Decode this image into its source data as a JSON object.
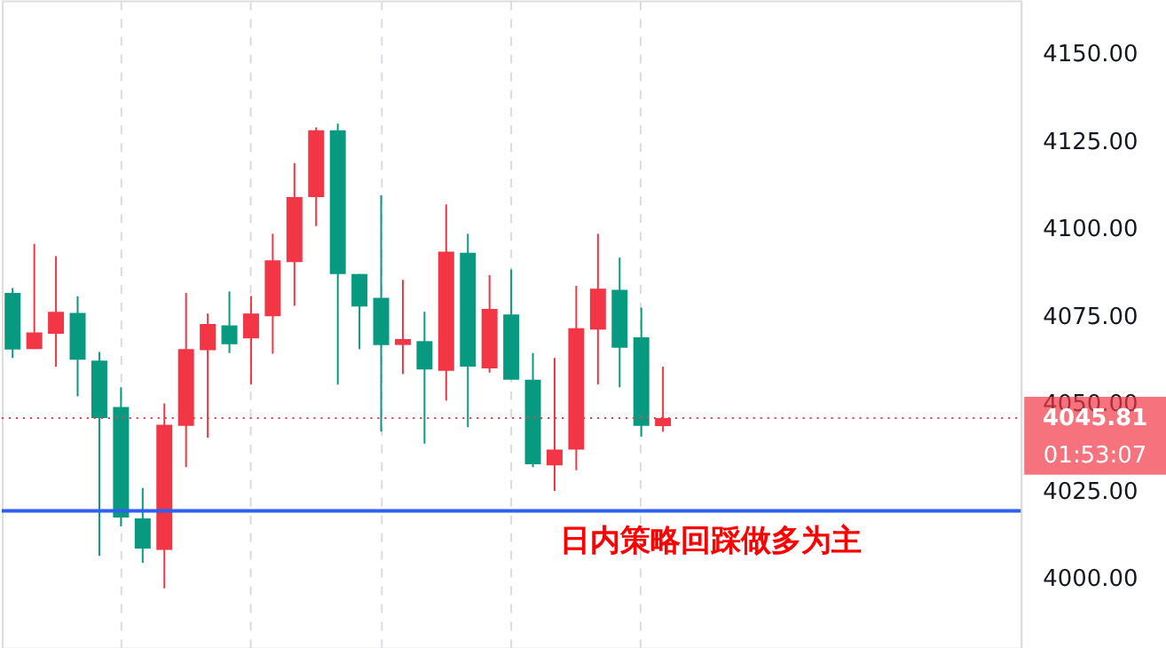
{
  "chart_data": {
    "type": "candlestick",
    "categories": [
      null,
      null,
      null,
      null,
      null,
      null,
      null,
      null,
      null,
      null,
      null,
      null,
      null,
      null,
      null,
      null,
      null,
      null,
      null,
      null,
      null,
      null,
      null,
      null,
      null,
      null,
      null,
      null,
      null,
      null,
      null,
      null,
      null,
      null,
      null,
      null,
      null,
      null,
      null,
      null,
      null,
      null,
      null,
      null,
      null,
      null,
      null
    ],
    "ohlc": [
      [
        4081.6,
        4083,
        4063,
        4065.4
      ],
      [
        4065.5,
        4095.6,
        4065.5,
        4070.3
      ],
      [
        4069.9,
        4092.1,
        4060.5,
        4076.2
      ],
      [
        4075.9,
        4080.6,
        4052.0,
        4062.5
      ],
      [
        4062.2,
        4064.7,
        4006.4,
        4045.8
      ],
      [
        4049.0,
        4054.6,
        4014.8,
        4017.4
      ],
      [
        4017.1,
        4025.8,
        4004.4,
        4008.5
      ],
      [
        4008.1,
        4050.0,
        3997.1,
        4043.9
      ],
      [
        4043.6,
        4081.6,
        4031.8,
        4065.5
      ],
      [
        4065.2,
        4075.7,
        4040.2,
        4072.7
      ],
      [
        4072.3,
        4082.0,
        4064.4,
        4066.9
      ],
      [
        4068.6,
        4080.7,
        4055.4,
        4075.7
      ],
      [
        4074.9,
        4098.5,
        4064.2,
        4090.9
      ],
      [
        4090.4,
        4118.7,
        4077.9,
        4109.0
      ],
      [
        4109.0,
        4128.9,
        4100.7,
        4128.1
      ],
      [
        4128.1,
        4130.0,
        4055.4,
        4087.0
      ],
      [
        4087.0,
        4087.0,
        4065.5,
        4077.7
      ],
      [
        4080.2,
        4109.5,
        4041.9,
        4066.7
      ],
      [
        4066.7,
        4085.3,
        4058.4,
        4068.4
      ],
      [
        4067.8,
        4076.2,
        4038.5,
        4059.7
      ],
      [
        4059.3,
        4106.9,
        4050.8,
        4093.4
      ],
      [
        4093.1,
        4098.5,
        4043.2,
        4060.5
      ],
      [
        4060.0,
        4086.7,
        4058.8,
        4077.0
      ],
      [
        4075.4,
        4088.3,
        4056.8,
        4056.8
      ],
      [
        4056.8,
        4064.4,
        4031.8,
        4032.6
      ],
      [
        4032.3,
        4063.0,
        4025.0,
        4036.8
      ],
      [
        4036.8,
        4083.6,
        4030.9,
        4071.5
      ],
      [
        4071.1,
        4098.5,
        4055.4,
        4082.8
      ],
      [
        4082.5,
        4091.7,
        4054.6,
        4065.9
      ],
      [
        4068.9,
        4077.4,
        4040.5,
        4043.6
      ],
      [
        4043.5,
        4060.5,
        4041.9,
        4045.81
      ],
      null,
      null,
      null,
      null,
      null,
      null,
      null,
      null,
      null,
      null,
      null,
      null,
      null,
      null,
      null,
      null
    ],
    "colors": [
      "#089981",
      "#f23645",
      "#f23645",
      "#089981",
      "#089981",
      "#089981",
      "#089981",
      "#f23645",
      "#f23645",
      "#f23645",
      "#089981",
      "#f23645",
      "#f23645",
      "#f23645",
      "#f23645",
      "#089981",
      "#089981",
      "#089981",
      "#f23645",
      "#089981",
      "#f23645",
      "#089981",
      "#f23645",
      "#089981",
      "#089981",
      "#f23645",
      "#f23645",
      "#f23645",
      "#089981",
      "#089981",
      "#f23645",
      null,
      null,
      null,
      null,
      null,
      null,
      null,
      null,
      null,
      null,
      null,
      null,
      null,
      null,
      null,
      null
    ],
    "ylim": [
      3980.2,
      4165.2
    ],
    "yticks": [
      {
        "value": 4000,
        "label": "4000.00"
      },
      {
        "value": 4025,
        "label": "4025.00"
      },
      {
        "value": 4050,
        "label": "4050.00"
      },
      {
        "value": 4075,
        "label": "4075.00"
      },
      {
        "value": 4100,
        "label": "4100.00"
      },
      {
        "value": 4125,
        "label": "4125.00"
      },
      {
        "value": 4150,
        "label": "4150.00"
      }
    ],
    "grid": "x",
    "tick_labels": "y",
    "ref_lines": [
      {
        "axis": "y",
        "value": 4019.3,
        "color": "#2f5ff0",
        "line_style": "solid"
      },
      {
        "axis": "y",
        "value": 4045.81,
        "label": "4045.81",
        "color": "#f23645",
        "line_style": "dotted"
      }
    ],
    "annotations": [
      "01:53:07",
      "日内策略回踩做多为主"
    ]
  }
}
